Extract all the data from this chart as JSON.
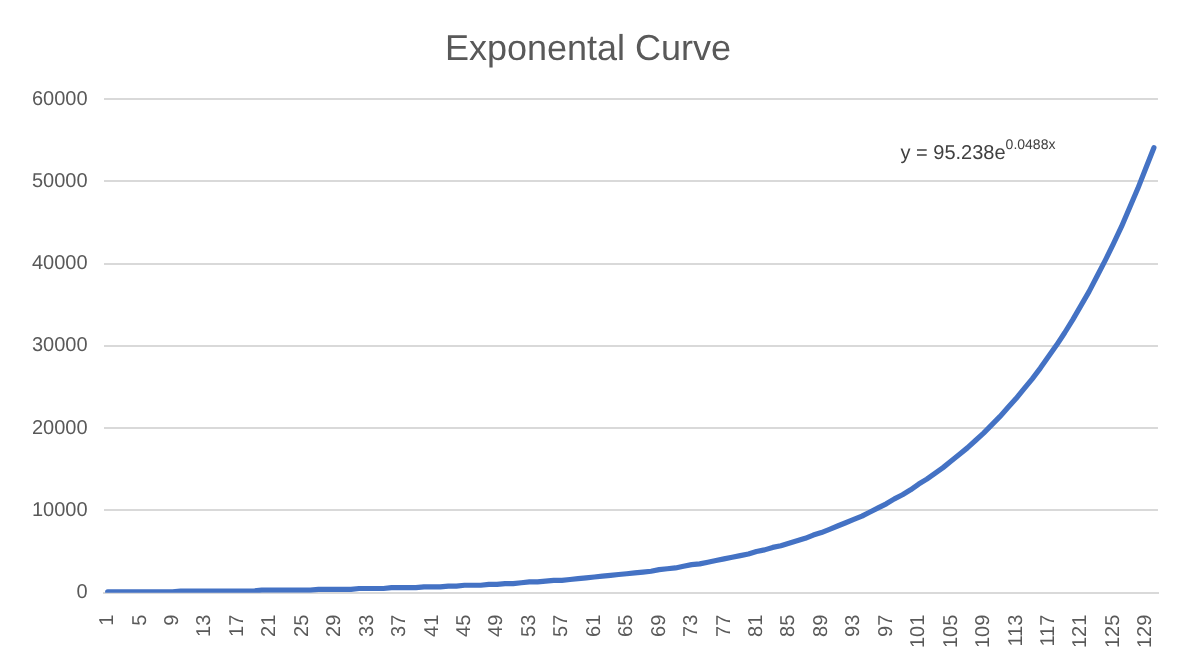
{
  "chart_data": {
    "type": "line",
    "title": "Exponental Curve",
    "categories": [
      "1",
      null,
      null,
      null,
      "5",
      null,
      null,
      null,
      "9",
      null,
      null,
      null,
      "13",
      null,
      null,
      null,
      "17",
      null,
      null,
      null,
      "21",
      null,
      null,
      null,
      "25",
      null,
      null,
      null,
      "29",
      null,
      null,
      null,
      "33",
      null,
      null,
      null,
      "37",
      null,
      null,
      null,
      "41",
      null,
      null,
      null,
      "45",
      null,
      null,
      null,
      "49",
      null,
      null,
      null,
      "53",
      null,
      null,
      null,
      "57",
      null,
      null,
      null,
      "61",
      null,
      null,
      null,
      "65",
      null,
      null,
      null,
      "69",
      null,
      null,
      null,
      "73",
      null,
      null,
      null,
      "77",
      null,
      null,
      null,
      "81",
      null,
      null,
      null,
      "85",
      null,
      null,
      null,
      "89",
      null,
      null,
      null,
      "93",
      null,
      null,
      null,
      "97",
      null,
      null,
      null,
      "101",
      null,
      null,
      null,
      "105",
      null,
      null,
      null,
      "109",
      null,
      null,
      null,
      "113",
      null,
      null,
      null,
      "117",
      null,
      null,
      null,
      "121",
      null,
      null,
      null,
      "125",
      null,
      null,
      null,
      "129",
      null
    ],
    "series": [
      {
        "color": "#4472c4",
        "values": [
          100,
          100,
          100,
          100,
          100,
          100,
          100,
          100,
          100,
          200,
          200,
          200,
          200,
          200,
          200,
          200,
          200,
          200,
          200,
          300,
          300,
          300,
          300,
          300,
          300,
          300,
          400,
          400,
          400,
          400,
          400,
          500,
          500,
          500,
          500,
          600,
          600,
          600,
          600,
          700,
          700,
          700,
          800,
          800,
          900,
          900,
          900,
          1000,
          1000,
          1100,
          1100,
          1200,
          1300,
          1300,
          1400,
          1500,
          1500,
          1600,
          1700,
          1800,
          1900,
          2000,
          2100,
          2200,
          2300,
          2400,
          2500,
          2600,
          2800,
          2900,
          3000,
          3200,
          3400,
          3500,
          3700,
          3900,
          4100,
          4300,
          4500,
          4700,
          5000,
          5200,
          5500,
          5700,
          6000,
          6300,
          6600,
          7000,
          7300,
          7700,
          8100,
          8500,
          8900,
          9300,
          9800,
          10300,
          10800,
          11400,
          11900,
          12500,
          13200,
          13800,
          14500,
          15200,
          16000,
          16800,
          17600,
          18500,
          19400,
          20400,
          21400,
          22500,
          23600,
          24800,
          26000,
          27300,
          28700,
          30100,
          31600,
          33200,
          34900,
          36600,
          38500,
          40400,
          42400,
          44500,
          46800,
          49100,
          51600,
          54100
        ]
      }
    ],
    "ylim": [
      0,
      60000
    ],
    "yticks": [
      0,
      10000,
      20000,
      30000,
      40000,
      50000,
      60000
    ],
    "grid": "y",
    "legend": false,
    "marker": "none",
    "line_style": "solid",
    "annotations": [
      "y = 95.238e$^{0.0488x}$"
    ]
  }
}
